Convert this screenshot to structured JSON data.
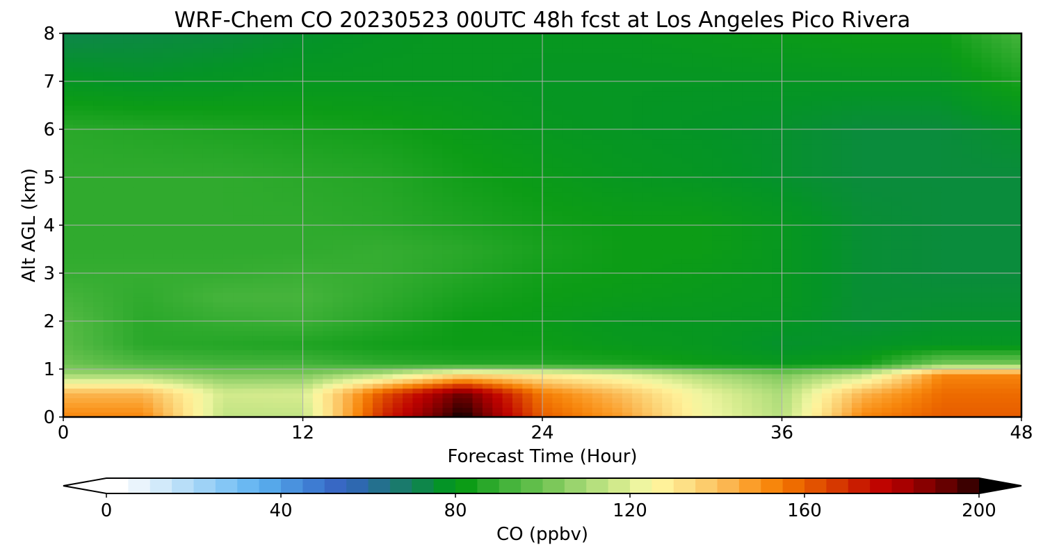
{
  "chart_data": {
    "type": "heatmap",
    "title": "WRF-Chem CO  20230523 00UTC 48h fcst at Los Angeles Pico Rivera",
    "xlabel": "Forecast Time (Hour)",
    "ylabel": "Alt AGL (km)",
    "x_ticks": [
      "0",
      "12",
      "24",
      "36",
      "48"
    ],
    "y_ticks": [
      "0",
      "1",
      "2",
      "3",
      "4",
      "5",
      "6",
      "7",
      "8"
    ],
    "xlim": [
      0,
      48
    ],
    "ylim": [
      0,
      8
    ],
    "grid": true,
    "x_hours": [
      0,
      4,
      8,
      12,
      16,
      20,
      24,
      28,
      32,
      36,
      40,
      44,
      48
    ],
    "y_km": [
      0,
      0.5,
      0.9,
      1.1,
      1.5,
      2,
      2.5,
      3,
      3.5,
      4,
      5,
      6,
      7,
      8
    ],
    "values_ppbv": [
      [
        150,
        150,
        112,
        112,
        168,
        200,
        158,
        145,
        122,
        110,
        150,
        158,
        158
      ],
      [
        140,
        140,
        115,
        116,
        160,
        190,
        152,
        138,
        120,
        108,
        140,
        155,
        155
      ],
      [
        105,
        105,
        100,
        100,
        110,
        130,
        125,
        118,
        108,
        100,
        112,
        150,
        150
      ],
      [
        98,
        92,
        90,
        90,
        86,
        84,
        84,
        83,
        80,
        78,
        80,
        100,
        100
      ],
      [
        94,
        85,
        84,
        83,
        81,
        80,
        80,
        78,
        77,
        74,
        75,
        76,
        76
      ],
      [
        93,
        85,
        87,
        88,
        84,
        80,
        79,
        77,
        77,
        76,
        73,
        74,
        74
      ],
      [
        90,
        86,
        90,
        90,
        86,
        82,
        80,
        79,
        78,
        77,
        73,
        73,
        73
      ],
      [
        87,
        87,
        87,
        88,
        87,
        84,
        81,
        80,
        79,
        77,
        73,
        72,
        72
      ],
      [
        86,
        86,
        86,
        86,
        87,
        85,
        82,
        80,
        80,
        77,
        73,
        72,
        72
      ],
      [
        86,
        86,
        86,
        86,
        85,
        83,
        81,
        80,
        80,
        77,
        73,
        72,
        72
      ],
      [
        86,
        86,
        86,
        85,
        84,
        81,
        79,
        77,
        76,
        74,
        72,
        72,
        72
      ],
      [
        85,
        84,
        83,
        82,
        81,
        79,
        77,
        76,
        75,
        74,
        72,
        72,
        74
      ],
      [
        76,
        75,
        76,
        77,
        77,
        77,
        76,
        76,
        76,
        76,
        76,
        76,
        82
      ],
      [
        70,
        71,
        72,
        74,
        76,
        77,
        77,
        77,
        78,
        79,
        80,
        80,
        90
      ]
    ],
    "colorbar": {
      "label": "CO  (ppbv)",
      "ticks": [
        "0",
        "40",
        "80",
        "120",
        "160",
        "200"
      ],
      "range": [
        0,
        200
      ],
      "extend": "both",
      "colors": [
        "#ffffff",
        "#eaf4fc",
        "#d2eafa",
        "#b8def8",
        "#9ed2f6",
        "#84c6f5",
        "#6ab8f2",
        "#56a8ea",
        "#4a92de",
        "#3e7cd2",
        "#3868c4",
        "#2e68b0",
        "#24708e",
        "#1a7a6c",
        "#0e864a",
        "#049426",
        "#0c9c16",
        "#2aa82a",
        "#46b43c",
        "#60be4a",
        "#7cc85a",
        "#9ad46e",
        "#b6e07e",
        "#d2ea8c",
        "#eef5a0",
        "#fff29a",
        "#fde086",
        "#fccc6c",
        "#fbb650",
        "#fb9e2a",
        "#f7860c",
        "#ee6c00",
        "#e25200",
        "#d63800",
        "#c91c00",
        "#bf0400",
        "#a80000",
        "#880000",
        "#660000",
        "#3c0000",
        "#000000"
      ]
    }
  }
}
